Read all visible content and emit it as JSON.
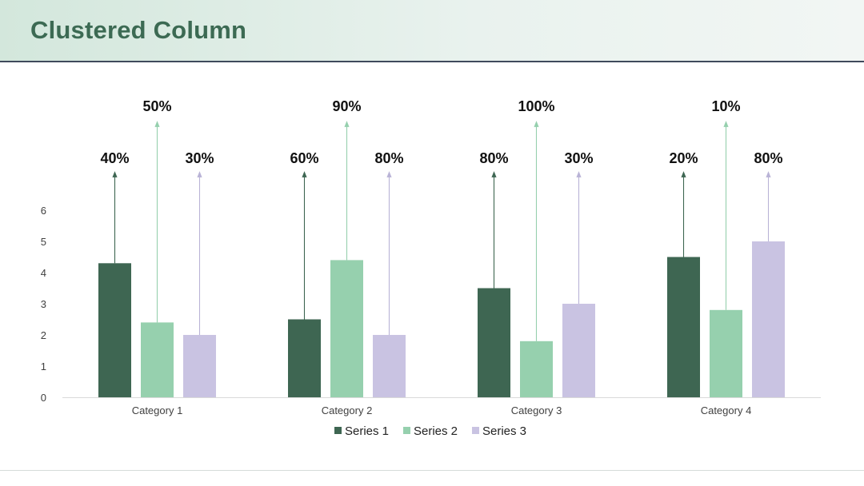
{
  "header": {
    "title": "Clustered Column"
  },
  "chart_data": {
    "type": "bar",
    "categories": [
      "Category 1",
      "Category 2",
      "Category 3",
      "Category 4"
    ],
    "series": [
      {
        "name": "Series 1",
        "values": [
          4.3,
          2.5,
          3.5,
          4.5
        ],
        "labels": [
          "40%",
          "60%",
          "80%",
          "20%"
        ],
        "color": "#3e6652"
      },
      {
        "name": "Series 2",
        "values": [
          2.4,
          4.4,
          1.8,
          2.8
        ],
        "labels": [
          "50%",
          "90%",
          "100%",
          "10%"
        ],
        "color": "#96d0ae"
      },
      {
        "name": "Series 3",
        "values": [
          2.0,
          2.0,
          3.0,
          5.0
        ],
        "labels": [
          "30%",
          "80%",
          "30%",
          "80%"
        ],
        "color": "#c9c3e2"
      }
    ],
    "yticks": [
      "0",
      "1",
      "2",
      "3",
      "4",
      "5",
      "6"
    ],
    "ylim": [
      0,
      6
    ],
    "grid": false,
    "legend": "bottom",
    "arrow_colors": [
      "#3e6652",
      "#96d0ae",
      "#b9b3d6"
    ]
  }
}
